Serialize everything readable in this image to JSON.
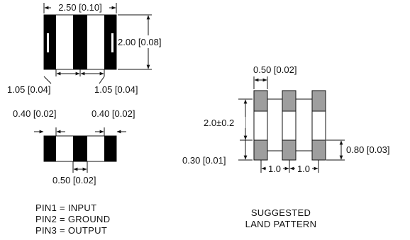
{
  "top_view": {
    "dim_length": "2.50 [0.10]",
    "dim_height": "2.00 [0.08]",
    "dim_pad_left": "1.05 [0.04]",
    "dim_pad_right": "1.05 [0.04]"
  },
  "side_view": {
    "dim_end_left": "0.40 [0.02]",
    "dim_end_right": "0.40 [0.02]",
    "dim_center": "0.50 [0.02]"
  },
  "pins": {
    "pin1": "PIN1 = INPUT",
    "pin2": "PIN2 = GROUND",
    "pin3": "PIN3 = OUTPUT"
  },
  "land_pattern": {
    "dim_pad_width": "0.50 [0.02]",
    "dim_height": "2.0±0.2",
    "dim_pad_length": "0.80 [0.03]",
    "dim_gap": "0.30 [0.01]",
    "dim_pitch_left": "1.0",
    "dim_pitch_right": "1.0",
    "title_line1": "SUGGESTED",
    "title_line2": "LAND PATTERN"
  },
  "colors": {
    "terminal": "#000000",
    "pad": "#9e9e9e",
    "outline": "#111111"
  }
}
